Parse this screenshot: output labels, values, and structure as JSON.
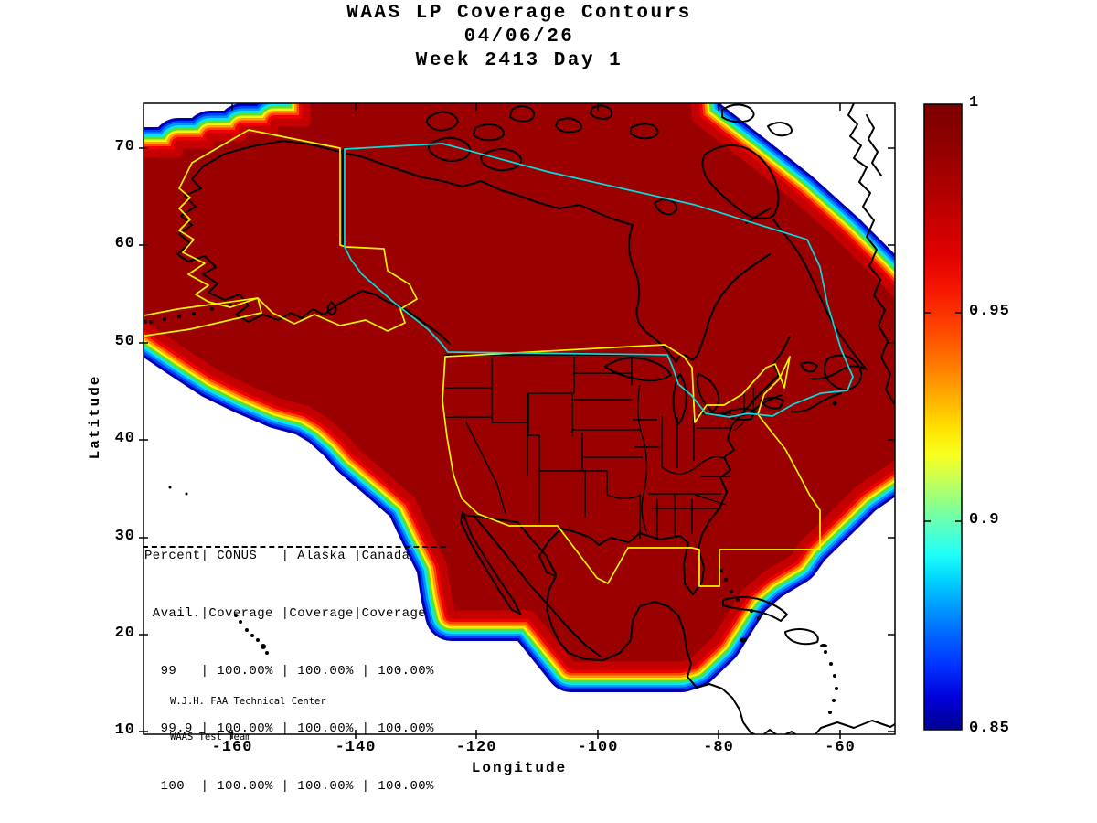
{
  "figure": {
    "title_line1": "WAAS LP Coverage Contours",
    "title_line2": "04/06/26",
    "title_line3": "Week 2413 Day 1"
  },
  "axes": {
    "x_label": "Longitude",
    "y_label": "Latitude",
    "x_tick_labels": [
      "-160",
      "-140",
      "-120",
      "-100",
      "-80",
      "-60"
    ],
    "y_tick_labels": [
      "70",
      "60",
      "50",
      "40",
      "30",
      "20",
      "10"
    ],
    "x_range": [
      -175,
      -50
    ],
    "y_range": [
      10,
      75
    ]
  },
  "colorbar": {
    "tick_labels": [
      "1",
      "0.95",
      "0.9",
      "0.85"
    ],
    "min": 0.85,
    "max": 1,
    "colormap": "jet",
    "stops": [
      {
        "at": "0%",
        "color": "#7C0000"
      },
      {
        "at": "6%",
        "color": "#8E0000"
      },
      {
        "at": "12%",
        "color": "#A80000"
      },
      {
        "at": "18%",
        "color": "#C40000"
      },
      {
        "at": "24%",
        "color": "#E00000"
      },
      {
        "at": "30%",
        "color": "#F81800"
      },
      {
        "at": "36%",
        "color": "#FF4700"
      },
      {
        "at": "42%",
        "color": "#FF7D00"
      },
      {
        "at": "47%",
        "color": "#FFB000"
      },
      {
        "at": "52%",
        "color": "#FFE400"
      },
      {
        "at": "56%",
        "color": "#F8FF1E"
      },
      {
        "at": "60%",
        "color": "#C8FF55"
      },
      {
        "at": "64%",
        "color": "#8CFF8C"
      },
      {
        "at": "68%",
        "color": "#55FFC8"
      },
      {
        "at": "72%",
        "color": "#1EFFF8"
      },
      {
        "at": "76%",
        "color": "#00D4FF"
      },
      {
        "at": "80%",
        "color": "#00A0FF"
      },
      {
        "at": "85%",
        "color": "#0064FF"
      },
      {
        "at": "90%",
        "color": "#0030FF"
      },
      {
        "at": "95%",
        "color": "#0000D8"
      },
      {
        "at": "100%",
        "color": "#000090"
      }
    ]
  },
  "availability_table": {
    "header_line1": "Percent| CONUS   | Alaska |Canada",
    "header_line2": " Avail.|Coverage |Coverage|Coverage",
    "rows": [
      "  99   | 100.00% | 100.00% | 100.00%",
      "  99.9 | 100.00% | 100.00% | 100.00%",
      "  100  | 100.00% | 100.00% | 100.00%"
    ]
  },
  "attribution_line1": "W.J.H. FAA Technical Center",
  "attribution_line2": "WAAS Test Team",
  "colors": {
    "coverage_interior": "#9B0000",
    "conus_alaska_boundary": "#F5F500",
    "canada_boundary": "#00E0E0",
    "coastline": "#000000"
  },
  "chart_data": {
    "type": "heatmap",
    "subtype": "geographic-coverage-contour",
    "title": "WAAS LP Coverage Contours",
    "date": "04/06/26",
    "gps_week": 2413,
    "gps_day": 1,
    "xlabel": "Longitude",
    "ylabel": "Latitude",
    "xlim": [
      -175,
      -50
    ],
    "ylim": [
      10,
      75
    ],
    "x_ticks": [
      -160,
      -140,
      -120,
      -100,
      -80,
      -60
    ],
    "y_ticks": [
      70,
      60,
      50,
      40,
      30,
      20,
      10
    ],
    "colorbar_range": [
      0.85,
      1
    ],
    "colorbar_ticks": [
      1,
      0.95,
      0.9,
      0.85
    ],
    "colormap": "jet",
    "grid": false,
    "legend_position": "none",
    "description": "Availability contour field over North America; interior of service volume saturated at 1.0 (dark red) with rainbow gradient band (1.0 down to 0.85) along the southwest Pacific edge, southeast Atlantic/Caribbean edge, and northeast edge near Greenland. Yellow outlines: CONUS and Alaska coverage regions; cyan outline: Canada coverage region; black: coastlines and US state borders.",
    "availability_rows": [
      {
        "percent_avail": 99,
        "conus_coverage": "100.00%",
        "alaska_coverage": "100.00%",
        "canada_coverage": "100.00%"
      },
      {
        "percent_avail": 99.9,
        "conus_coverage": "100.00%",
        "alaska_coverage": "100.00%",
        "canada_coverage": "100.00%"
      },
      {
        "percent_avail": 100,
        "conus_coverage": "100.00%",
        "alaska_coverage": "100.00%",
        "canada_coverage": "100.00%"
      }
    ]
  }
}
